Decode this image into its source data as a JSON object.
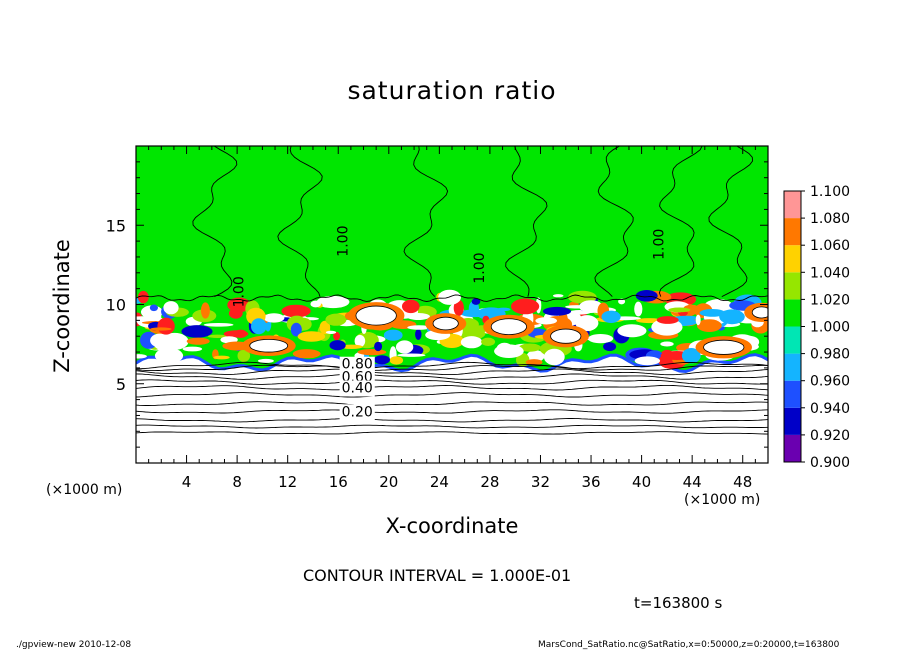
{
  "chart_data": {
    "type": "heatmap",
    "title": "saturation ratio",
    "xlabel": "X-coordinate",
    "ylabel": "Z-coordinate",
    "x_unit_label": "(×1000 m)",
    "z_unit_label": "(×1000 m)",
    "xlim": [
      0,
      50
    ],
    "ylim": [
      0,
      20
    ],
    "x_ticks": [
      4,
      8,
      12,
      16,
      20,
      24,
      28,
      32,
      36,
      40,
      44,
      48
    ],
    "y_ticks": [
      5,
      10,
      15
    ],
    "colorbar": {
      "levels": [
        "0.900",
        "0.920",
        "0.940",
        "0.960",
        "0.980",
        "1.000",
        "1.020",
        "1.040",
        "1.060",
        "1.080",
        "1.100"
      ],
      "colors": [
        "#6a00b0",
        "#0000c8",
        "#1e50ff",
        "#14b4ff",
        "#00e6b4",
        "#00e600",
        "#96e600",
        "#ffd200",
        "#ff7800",
        "#ff1e1e",
        "#ff9696"
      ]
    },
    "contour_labels": [
      {
        "text": "1.00",
        "x": 16.4,
        "z": 14.0
      },
      {
        "text": "1.00",
        "x": 8.2,
        "z": 10.8
      },
      {
        "text": "1.00",
        "x": 27.2,
        "z": 12.3
      },
      {
        "text": "1.00",
        "x": 41.4,
        "z": 13.8
      },
      {
        "text": "0.80",
        "x": 17.5,
        "z": 6.2
      },
      {
        "text": "0.60",
        "x": 17.5,
        "z": 5.4
      },
      {
        "text": "0.40",
        "x": 17.5,
        "z": 4.7
      },
      {
        "text": "0.20",
        "x": 17.5,
        "z": 3.2
      }
    ],
    "lower_contour_levels": [
      {
        "value": 0.2,
        "z": 3.25
      },
      {
        "value": 0.4,
        "z": 4.75
      },
      {
        "value": 0.6,
        "z": 5.45
      },
      {
        "value": 0.8,
        "z": 6.15
      }
    ]
  },
  "annotations": {
    "contour_interval": "CONTOUR INTERVAL = 1.000E-01",
    "time": "t=163800 s"
  },
  "footer": {
    "left": "./gpview-new  2010-12-08",
    "right": "MarsCond_SatRatio.nc@SatRatio,x=0:50000,z=0:20000,t=163800"
  }
}
